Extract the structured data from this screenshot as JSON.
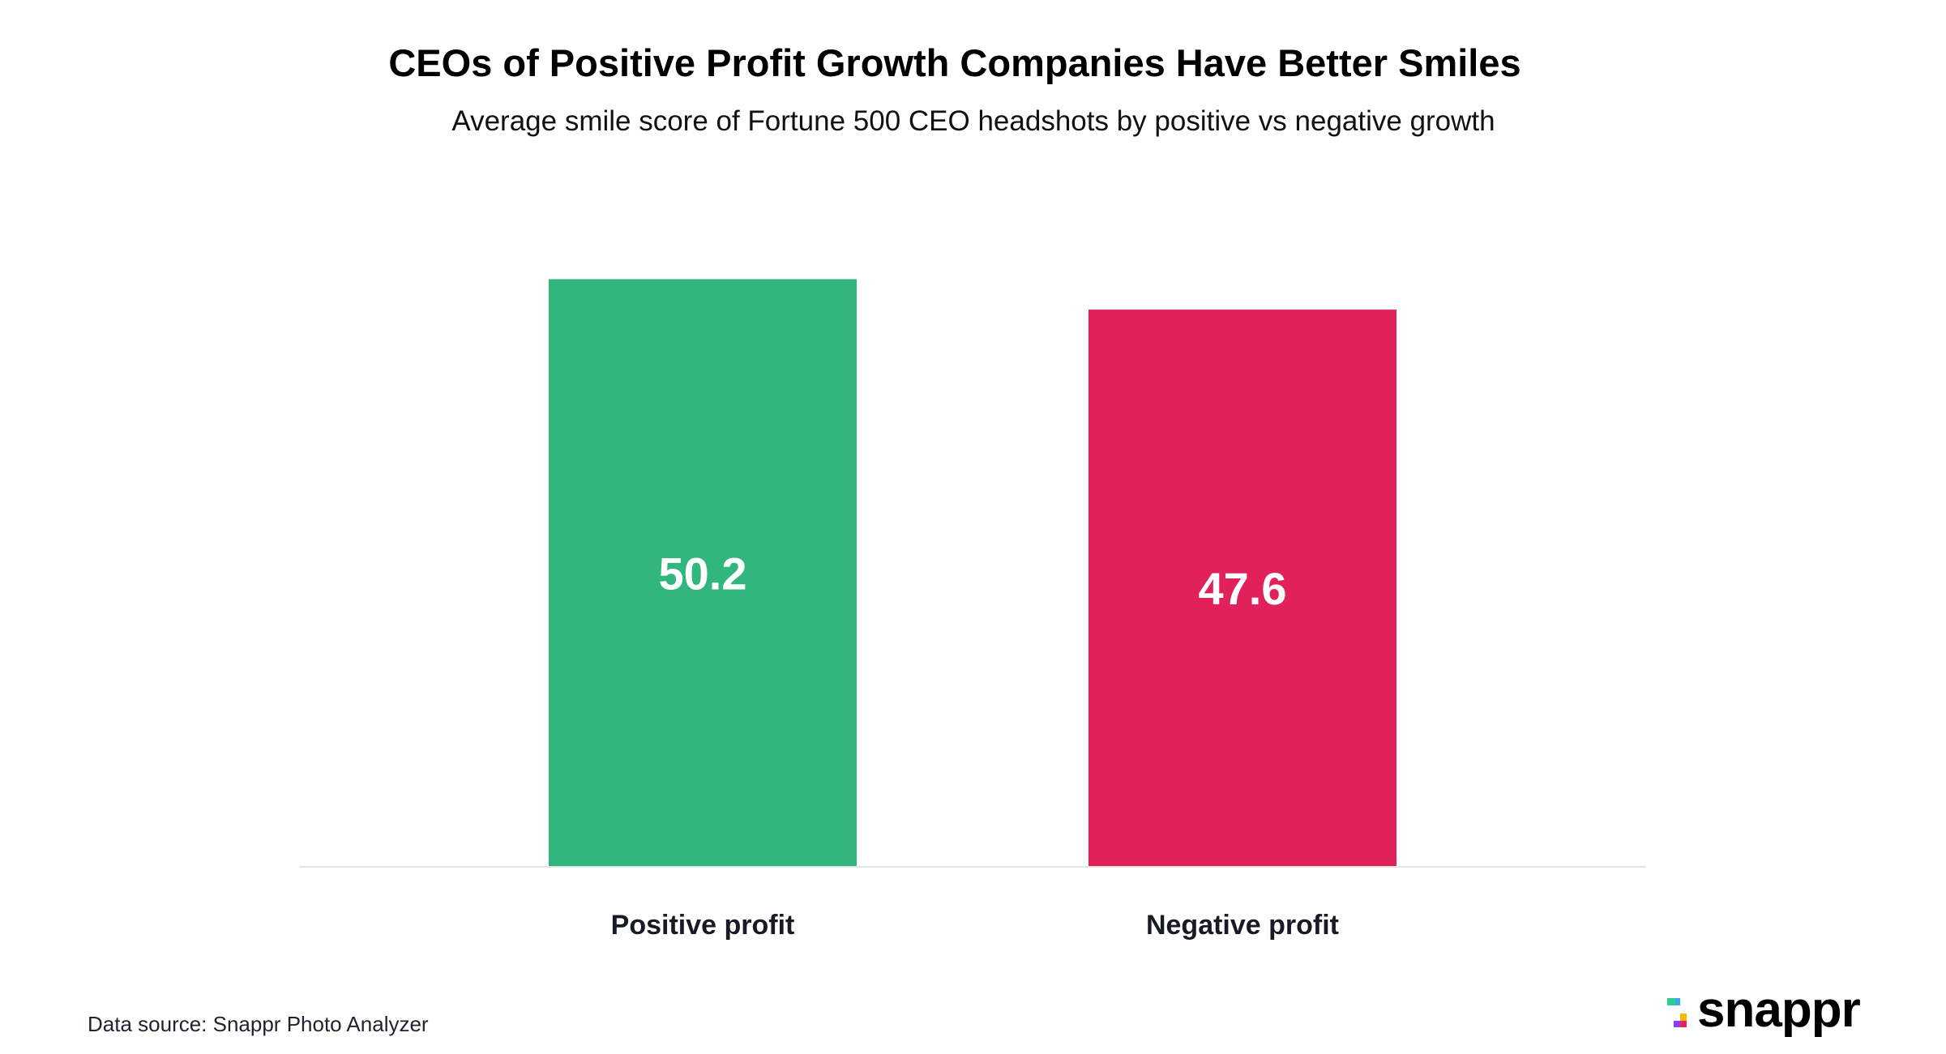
{
  "header": {
    "title": "CEOs of Positive Profit Growth Companies Have Better Smiles",
    "subtitle": "Average smile score of Fortune 500 CEO headshots by positive vs negative growth"
  },
  "footer": {
    "source": "Data source: Snappr Photo Analyzer",
    "logo_text": "snappr",
    "logo_colors": {
      "green": "#2ecf8e",
      "blue": "#3aa6f0",
      "orange": "#ffb800",
      "purple": "#8a3ffc",
      "pink": "#e8235a"
    }
  },
  "chart_data": {
    "type": "bar",
    "title": "CEOs of Positive Profit Growth Companies Have Better Smiles",
    "subtitle": "Average smile score of Fortune 500 CEO headshots by positive vs negative growth",
    "xlabel": "",
    "ylabel": "",
    "categories": [
      "Positive profit",
      "Negative profit"
    ],
    "values": [
      50.2,
      47.6
    ],
    "value_labels": [
      "50.2",
      "47.6"
    ],
    "colors": [
      "#31b77e",
      "#e1215a"
    ],
    "ylim": [
      0,
      55
    ],
    "grid": false,
    "legend": "none",
    "y_axis_visible": false,
    "data_labels_position": "center"
  }
}
